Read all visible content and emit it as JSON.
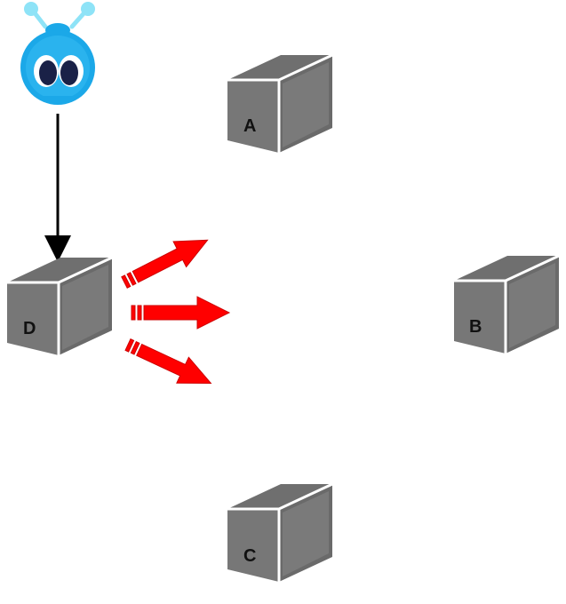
{
  "nodes": [
    {
      "id": "A",
      "label": "A"
    },
    {
      "id": "B",
      "label": "B"
    },
    {
      "id": "C",
      "label": "C"
    },
    {
      "id": "D",
      "label": "D"
    }
  ],
  "agent": {
    "icon": "blue-alien-mascot-icon"
  },
  "edges": [
    {
      "from": "agent",
      "to": "D",
      "color": "#000000"
    }
  ],
  "broadcast": {
    "from": "D",
    "arrow_count": 3,
    "color": "#ff0000"
  },
  "colors": {
    "cube_front": "#767676",
    "cube_top": "#707070",
    "cube_edge": "#ffffff",
    "alien_body": "#1ba8e8",
    "alien_antenna": "#8ee3f7",
    "alien_eye": "#1a2147"
  }
}
